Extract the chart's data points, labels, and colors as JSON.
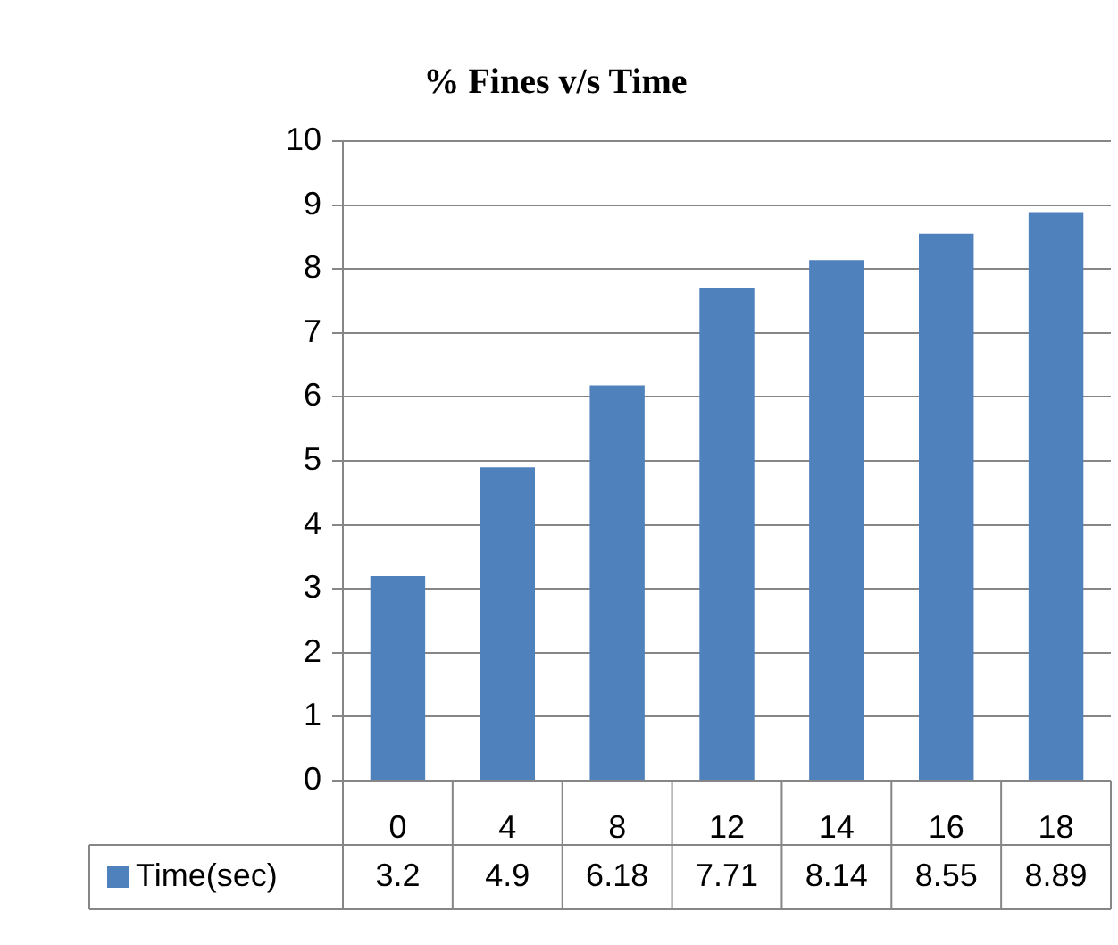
{
  "chart_data": {
    "type": "bar",
    "title": "% Fines v/s Time",
    "categories": [
      "0",
      "4",
      "8",
      "12",
      "14",
      "16",
      "18"
    ],
    "series": [
      {
        "name": "Time(sec)",
        "color": "#4f81bd",
        "values": [
          3.2,
          4.9,
          6.18,
          7.71,
          8.14,
          8.55,
          8.89
        ]
      }
    ],
    "ylim": [
      0,
      10
    ],
    "yticks": [
      0,
      1,
      2,
      3,
      4,
      5,
      6,
      7,
      8,
      9,
      10
    ],
    "grid": "y",
    "legend": "bottom",
    "data_labels": true
  }
}
